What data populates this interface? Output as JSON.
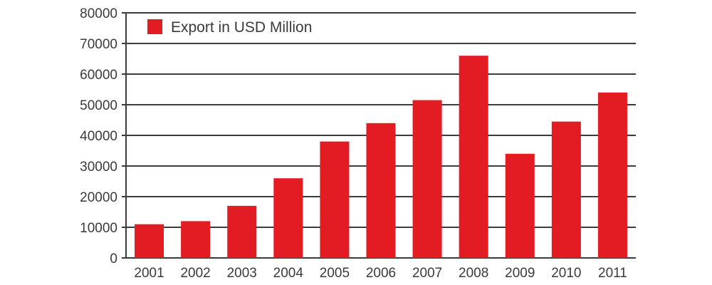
{
  "chart_data": {
    "type": "bar",
    "categories": [
      "2001",
      "2002",
      "2003",
      "2004",
      "2005",
      "2006",
      "2007",
      "2008",
      "2009",
      "2010",
      "2011"
    ],
    "series": [
      {
        "name": "Export in USD Million",
        "values": [
          11000,
          12000,
          17000,
          26000,
          38000,
          44000,
          51500,
          66000,
          34000,
          44500,
          54000
        ]
      }
    ],
    "title": "",
    "xlabel": "",
    "ylabel": "",
    "ylim": [
      0,
      80000
    ],
    "yticks": [
      "0",
      "10000",
      "20000",
      "30000",
      "40000",
      "50000",
      "60000",
      "70000",
      "80000"
    ],
    "grid": true,
    "legend_position": "top-left",
    "colors": {
      "bar": "#e31b23",
      "grid": "#3c3c3c",
      "text": "#3a3a3a"
    }
  }
}
